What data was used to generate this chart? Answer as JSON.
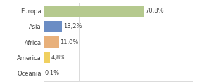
{
  "categories": [
    "Europa",
    "Asia",
    "Africa",
    "America",
    "Oceania"
  ],
  "values": [
    70.8,
    13.2,
    11.0,
    4.8,
    0.1
  ],
  "labels": [
    "70,8%",
    "13,2%",
    "11,0%",
    "4,8%",
    "0,1%"
  ],
  "bar_colors": [
    "#b5c98e",
    "#6b8dc4",
    "#e8b07a",
    "#f0d060",
    "#f5c0a0"
  ],
  "background_color": "#ffffff",
  "xlim": [
    0,
    105
  ],
  "label_fontsize": 6.0,
  "tick_fontsize": 6.0,
  "bar_height": 0.7,
  "grid_color": "#cccccc",
  "grid_xticks": [
    0,
    25,
    50,
    75,
    100
  ],
  "border_color": "#cccccc"
}
